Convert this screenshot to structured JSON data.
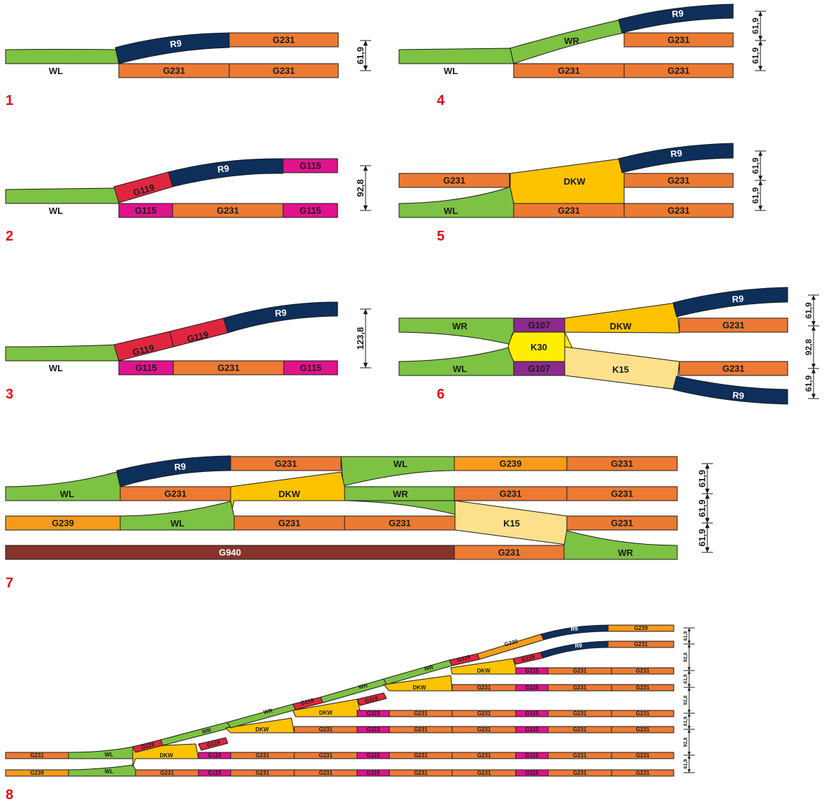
{
  "colors": {
    "WL": "#7dc243",
    "WR": "#7dc243",
    "G231": "#ec7a33",
    "R9": "#0d2f5a",
    "G119": "#e0263f",
    "G115": "#e0138c",
    "DKW": "#fdc300",
    "G107": "#8b2a8d",
    "K30": "#ffee00",
    "K15": "#fde08c",
    "G239": "#f89b1c",
    "G940": "#86332a",
    "number": "#e30613",
    "stroke": "#1a1a1a",
    "label_light": "#ffffff",
    "label_dark": "#1a1a1a"
  },
  "figures": [
    {
      "id": "1",
      "label": "1",
      "dims": [
        "61,9"
      ]
    },
    {
      "id": "2",
      "label": "2",
      "dims": [
        "92,8"
      ]
    },
    {
      "id": "3",
      "label": "3",
      "dims": [
        "123,8"
      ]
    },
    {
      "id": "4",
      "label": "4",
      "dims": [
        "61,9",
        "61,9"
      ]
    },
    {
      "id": "5",
      "label": "5",
      "dims": [
        "61,9",
        "61,9"
      ]
    },
    {
      "id": "6",
      "label": "6",
      "dims": [
        "61,9",
        "92,8",
        "61,9"
      ]
    },
    {
      "id": "7",
      "label": "7",
      "dims": [
        "61,9",
        "61,9",
        "61,9"
      ]
    },
    {
      "id": "8",
      "label": "8",
      "dims": [
        "61,9",
        "92,8",
        "61,9",
        "92,8",
        "61,9",
        "92,8",
        "61,9"
      ]
    }
  ]
}
